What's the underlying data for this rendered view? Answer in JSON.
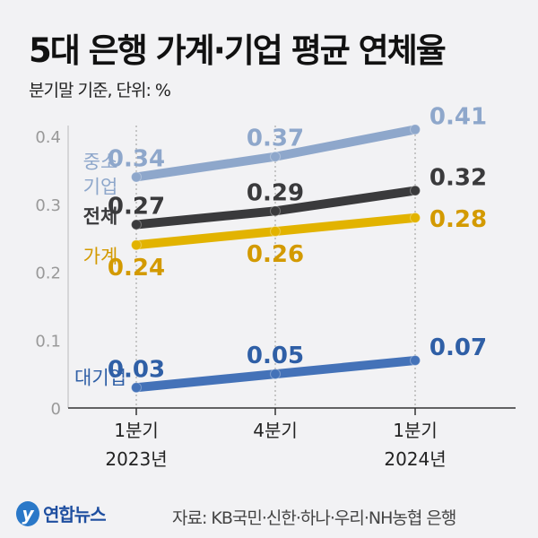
{
  "title": "5대 은행 가계·기업 평균 연체율",
  "subtitle": "분기말 기준, 단위: %",
  "source": "자료: KB국민·신한·하나·우리·NH농협 은행",
  "logo_text": "연합뉴스",
  "chart_data": {
    "type": "line",
    "title": "5대 은행 가계·기업 평균 연체율",
    "categories": [
      [
        "1분기",
        "2023년"
      ],
      [
        "4분기",
        ""
      ],
      [
        "1분기",
        "2024년"
      ]
    ],
    "ylim": [
      0,
      0.4
    ],
    "yticks": [
      "0",
      "0.1",
      "0.2",
      "0.3",
      "0.4"
    ],
    "series": [
      {
        "name": "중소기업",
        "name_lines": [
          "중소",
          "기업"
        ],
        "values": [
          0.34,
          0.37,
          0.41
        ],
        "labels": [
          "0.34",
          "0.37",
          "0.41"
        ],
        "color": "#8ea7cb",
        "label_pos": "above"
      },
      {
        "name": "전체",
        "name_lines": [
          "전체"
        ],
        "values": [
          0.27,
          0.29,
          0.32
        ],
        "labels": [
          "0.27",
          "0.29",
          "0.32"
        ],
        "color": "#3a3a3c",
        "label_pos": "above"
      },
      {
        "name": "가계",
        "name_lines": [
          "가계"
        ],
        "values": [
          0.24,
          0.26,
          0.28
        ],
        "labels": [
          "0.24",
          "0.26",
          "0.28"
        ],
        "color": "#e2b300",
        "text_color": "#d39a00",
        "label_pos": "below"
      },
      {
        "name": "대기업",
        "name_lines": [
          "대기업"
        ],
        "values": [
          0.03,
          0.05,
          0.07
        ],
        "labels": [
          "0.03",
          "0.05",
          "0.07"
        ],
        "color": "#4472b8",
        "text_color": "#2f5fa6",
        "label_pos": "above"
      }
    ]
  }
}
